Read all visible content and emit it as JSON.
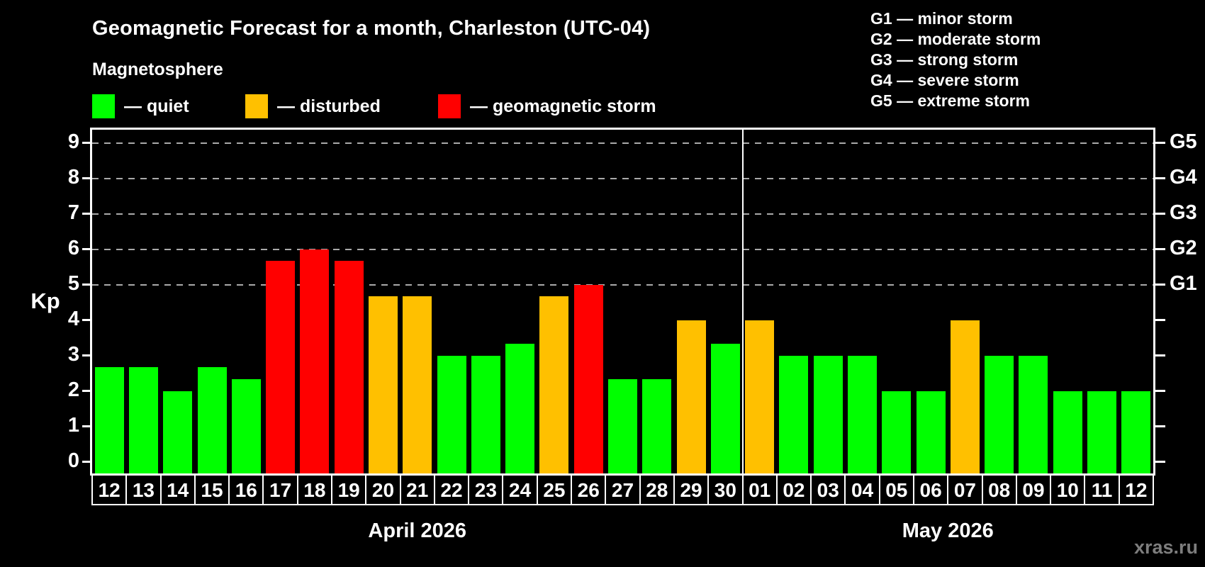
{
  "header": {
    "title": "Geomagnetic Forecast for a month, Charleston (UTC-04)",
    "subtitle": "Magnetosphere",
    "legend": [
      {
        "state": "quiet",
        "label": "— quiet"
      },
      {
        "state": "disturbed",
        "label": "— disturbed"
      },
      {
        "state": "storm",
        "label": "— geomagnetic storm"
      }
    ],
    "g_scale_legend": [
      "G1 — minor storm",
      "G2 — moderate storm",
      "G3 — strong storm",
      "G4 — severe storm",
      "G5 — extreme storm"
    ]
  },
  "watermark": "xras.ru",
  "chart_data": {
    "type": "bar",
    "title": "Geomagnetic Forecast for a month, Charleston (UTC-04)",
    "ylabel": "Kp",
    "ylim": [
      0,
      9
    ],
    "y_ticks": [
      "0",
      "1",
      "2",
      "3",
      "4",
      "5",
      "6",
      "7",
      "8",
      "9"
    ],
    "gridline_levels": [
      5,
      6,
      7,
      8,
      9
    ],
    "right_axis": [
      {
        "label": "G1",
        "kp": 5
      },
      {
        "label": "G2",
        "kp": 6
      },
      {
        "label": "G3",
        "kp": 7
      },
      {
        "label": "G4",
        "kp": 8
      },
      {
        "label": "G5",
        "kp": 9
      }
    ],
    "state_colors": {
      "quiet": "#00ff00",
      "disturbed": "#ffc000",
      "storm": "#ff0000"
    },
    "grid_color": "#aaaaaa",
    "months": [
      {
        "label": "April 2026",
        "days": [
          {
            "day": "12",
            "kp": 2.67,
            "state": "quiet"
          },
          {
            "day": "13",
            "kp": 2.67,
            "state": "quiet"
          },
          {
            "day": "14",
            "kp": 2.0,
            "state": "quiet"
          },
          {
            "day": "15",
            "kp": 2.67,
            "state": "quiet"
          },
          {
            "day": "16",
            "kp": 2.33,
            "state": "quiet"
          },
          {
            "day": "17",
            "kp": 5.67,
            "state": "storm"
          },
          {
            "day": "18",
            "kp": 6.0,
            "state": "storm"
          },
          {
            "day": "19",
            "kp": 5.67,
            "state": "storm"
          },
          {
            "day": "20",
            "kp": 4.67,
            "state": "disturbed"
          },
          {
            "day": "21",
            "kp": 4.67,
            "state": "disturbed"
          },
          {
            "day": "22",
            "kp": 3.0,
            "state": "quiet"
          },
          {
            "day": "23",
            "kp": 3.0,
            "state": "quiet"
          },
          {
            "day": "24",
            "kp": 3.33,
            "state": "quiet"
          },
          {
            "day": "25",
            "kp": 4.67,
            "state": "disturbed"
          },
          {
            "day": "26",
            "kp": 5.0,
            "state": "storm"
          },
          {
            "day": "27",
            "kp": 2.33,
            "state": "quiet"
          },
          {
            "day": "28",
            "kp": 2.33,
            "state": "quiet"
          },
          {
            "day": "29",
            "kp": 4.0,
            "state": "disturbed"
          },
          {
            "day": "30",
            "kp": 3.33,
            "state": "quiet"
          }
        ]
      },
      {
        "label": "May 2026",
        "days": [
          {
            "day": "01",
            "kp": 4.0,
            "state": "disturbed"
          },
          {
            "day": "02",
            "kp": 3.0,
            "state": "quiet"
          },
          {
            "day": "03",
            "kp": 3.0,
            "state": "quiet"
          },
          {
            "day": "04",
            "kp": 3.0,
            "state": "quiet"
          },
          {
            "day": "05",
            "kp": 2.0,
            "state": "quiet"
          },
          {
            "day": "06",
            "kp": 2.0,
            "state": "quiet"
          },
          {
            "day": "07",
            "kp": 4.0,
            "state": "disturbed"
          },
          {
            "day": "08",
            "kp": 3.0,
            "state": "quiet"
          },
          {
            "day": "09",
            "kp": 3.0,
            "state": "quiet"
          },
          {
            "day": "10",
            "kp": 2.0,
            "state": "quiet"
          },
          {
            "day": "11",
            "kp": 2.0,
            "state": "quiet"
          },
          {
            "day": "12",
            "kp": 2.0,
            "state": "quiet"
          }
        ]
      }
    ]
  }
}
